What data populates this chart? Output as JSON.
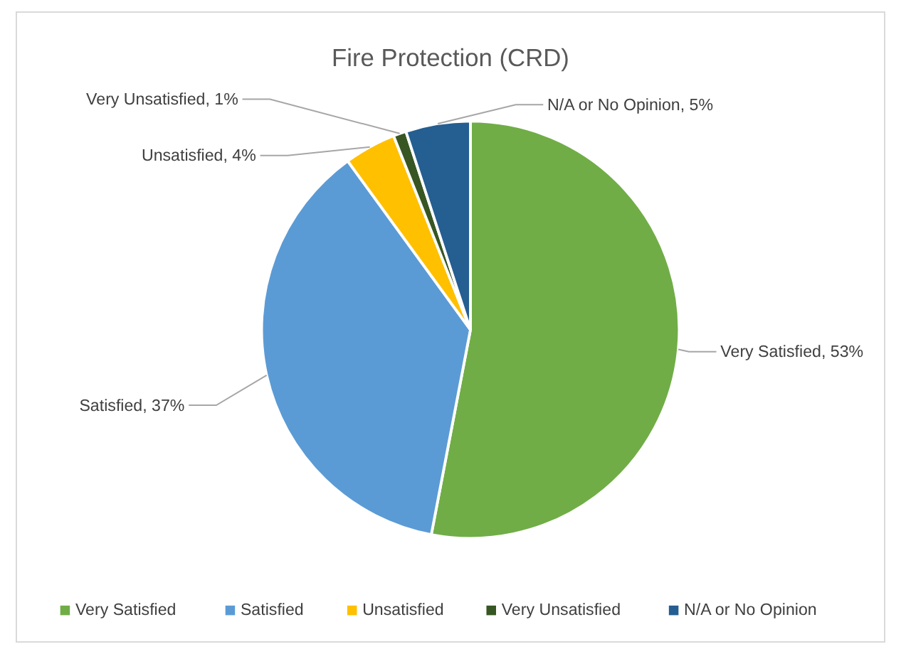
{
  "chart_data": {
    "type": "pie",
    "title": "Fire Protection (CRD)",
    "categories": [
      "Very Satisfied",
      "Satisfied",
      "Unsatisfied",
      "Very Unsatisfied",
      "N/A or No Opinion"
    ],
    "values": [
      53,
      37,
      4,
      1,
      5
    ],
    "value_labels": [
      "Very Satisfied, 53%",
      "Satisfied, 37%",
      "Unsatisfied, 4%",
      "Very Unsatisfied, 1%",
      "N/A or No Opinion, 5%"
    ],
    "colors": [
      "#70ad47",
      "#5b9bd5",
      "#ffc000",
      "#375623",
      "#255e91"
    ],
    "legend": "bottom"
  }
}
